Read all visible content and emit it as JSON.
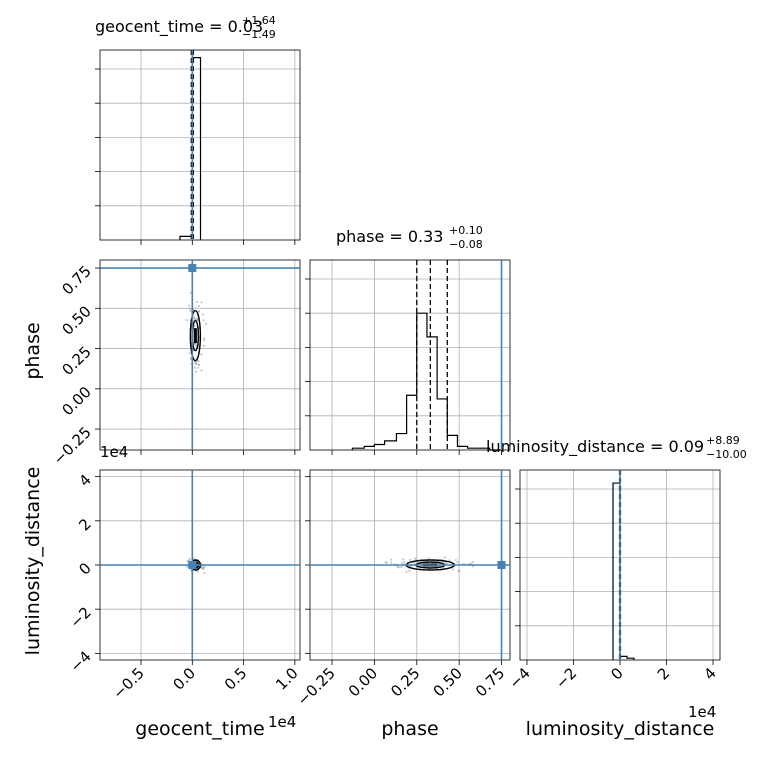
{
  "chart_data": {
    "type": "corner",
    "parameters": [
      "geocent_time",
      "phase",
      "luminosity_distance"
    ],
    "truths": {
      "geocent_time": 0.0,
      "phase": 0.75,
      "luminosity_distance": 0.0
    },
    "titles": [
      {
        "text": "geocent_time = 0.03",
        "sup": "+1.64",
        "sub": "−1.49"
      },
      {
        "text": "phase = 0.33",
        "sup": "+0.10",
        "sub": "−0.08"
      },
      {
        "text": "luminosity_distance = 0.09",
        "sup": "+8.89",
        "sub": "−10.00"
      }
    ],
    "axis_labels": {
      "x": [
        "geocent_time",
        "phase",
        "luminosity_distance"
      ],
      "y": [
        "phase",
        "luminosity_distance"
      ]
    },
    "offsets": {
      "geocent_time_x": "1e4",
      "luminosity_distance_x": "1e4",
      "luminosity_distance_y": "1e4"
    },
    "ticks": {
      "geocent_time": [
        "−0.5",
        "0.0",
        "0.5",
        "1.0"
      ],
      "phase": [
        "−0.25",
        "0.00",
        "0.25",
        "0.50",
        "0.75"
      ],
      "luminosity_distance": [
        "−4",
        "−2",
        "0",
        "2",
        "4"
      ]
    },
    "histograms": {
      "geocent_time": {
        "xlim": [
          -0.9,
          1.05
        ],
        "bins": [
          -0.12,
          -0.04,
          0.0,
          0.08
        ],
        "counts": [
          0.02,
          0.02,
          1.0
        ],
        "quantiles": [
          -0.01,
          0.0,
          0.01
        ]
      },
      "phase": {
        "xlim": [
          -0.38,
          0.8
        ],
        "bins": [
          -0.13,
          -0.06,
          0.0,
          0.06,
          0.13,
          0.19,
          0.25,
          0.31,
          0.37,
          0.43,
          0.49,
          0.55,
          0.62,
          0.68,
          0.75
        ],
        "counts": [
          0.01,
          0.02,
          0.03,
          0.05,
          0.09,
          0.3,
          0.75,
          0.62,
          0.28,
          0.08,
          0.02,
          0.01,
          0.01,
          0.0
        ],
        "quantiles": [
          0.25,
          0.33,
          0.43
        ]
      },
      "luminosity_distance": {
        "xlim": [
          -4.3,
          4.3
        ],
        "bins": [
          -0.3,
          0.0,
          0.3,
          0.6
        ],
        "counts": [
          0.97,
          0.02,
          0.01
        ],
        "quantiles": [
          -0.02,
          0.01,
          0.02
        ]
      }
    }
  }
}
